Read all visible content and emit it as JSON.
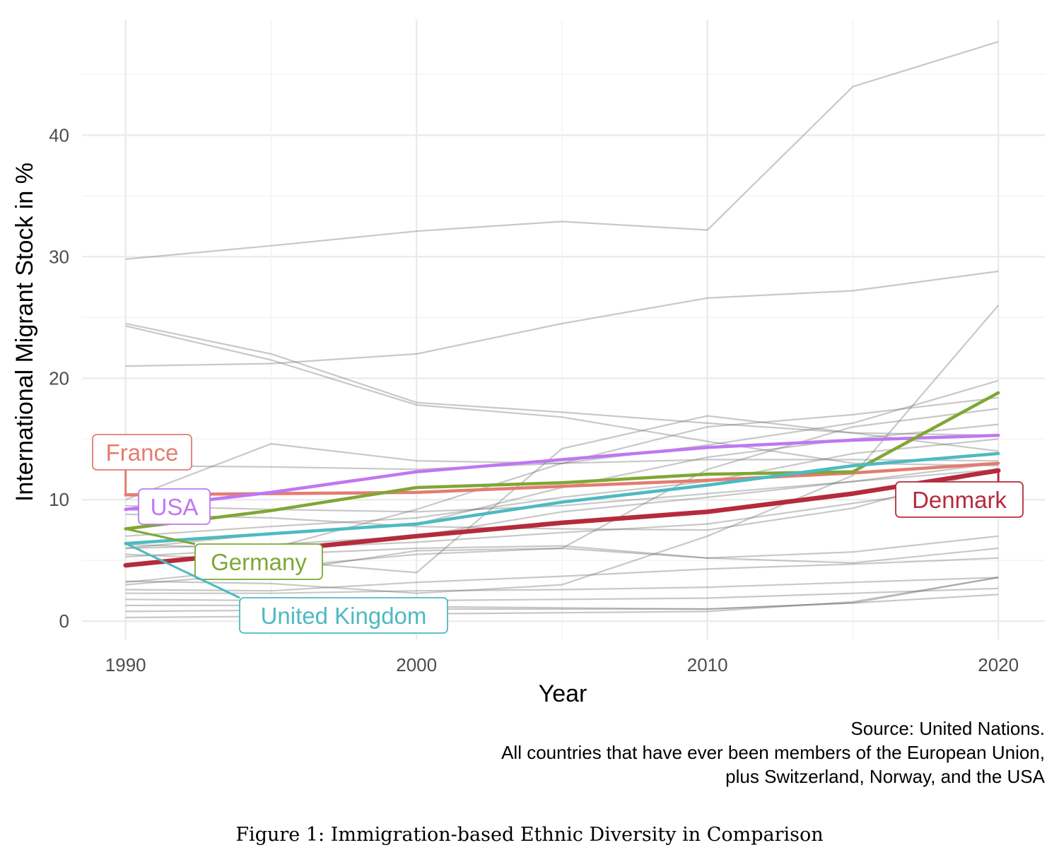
{
  "chart_data": {
    "type": "line",
    "xlabel": "Year",
    "ylabel": "International Migrant Stock in %",
    "xlim": [
      1988.5,
      2021.6
    ],
    "ylim": [
      -1.5,
      49.5
    ],
    "x_ticks": [
      1990,
      2000,
      2010,
      2020
    ],
    "y_ticks": [
      0,
      10,
      20,
      30,
      40
    ],
    "grid": true,
    "x": [
      1990,
      1995,
      2000,
      2005,
      2010,
      2015,
      2020
    ],
    "background_series": [
      [
        29.8,
        30.9,
        32.1,
        32.9,
        32.2,
        44.0,
        47.7
      ],
      [
        21.0,
        21.2,
        22.0,
        24.5,
        26.6,
        27.2,
        28.8
      ],
      [
        24.5,
        22.0,
        18.0,
        17.2,
        16.3,
        15.5,
        15.3
      ],
      [
        24.3,
        21.5,
        17.8,
        16.8,
        14.8,
        13.0,
        12.8
      ],
      [
        10.0,
        14.6,
        13.2,
        13.0,
        13.3,
        13.3,
        13.2
      ],
      [
        12.8,
        12.7,
        12.5,
        13.0,
        14.5,
        16.3,
        19.8
      ],
      [
        6.0,
        7.2,
        8.0,
        11.0,
        13.5,
        15.0,
        16.2
      ],
      [
        9.5,
        9.2,
        9.0,
        9.5,
        10.5,
        11.5,
        12.5
      ],
      [
        8.8,
        8.5,
        7.8,
        7.6,
        7.5,
        9.3,
        12.6
      ],
      [
        6.0,
        6.3,
        7.0,
        9.0,
        10.2,
        11.5,
        13.0
      ],
      [
        5.3,
        6.0,
        6.5,
        7.3,
        8.0,
        9.7,
        11.4
      ],
      [
        5.5,
        5.0,
        4.0,
        14.2,
        16.9,
        15.5,
        14.0
      ],
      [
        6.3,
        6.0,
        9.2,
        13.0,
        16.0,
        17.0,
        18.4
      ],
      [
        7.0,
        7.8,
        8.5,
        10.2,
        11.5,
        13.8,
        15.0
      ],
      [
        3.3,
        3.1,
        2.3,
        3.0,
        7.0,
        12.0,
        26.0
      ],
      [
        3.2,
        4.4,
        5.5,
        6.0,
        12.5,
        16.0,
        17.5
      ],
      [
        2.6,
        2.5,
        3.2,
        3.7,
        4.3,
        4.7,
        5.2
      ],
      [
        2.3,
        2.3,
        2.5,
        2.6,
        2.8,
        3.2,
        3.6
      ],
      [
        1.8,
        1.7,
        1.7,
        1.8,
        1.9,
        2.3,
        2.7
      ],
      [
        1.3,
        1.3,
        1.2,
        1.1,
        1.0,
        1.5,
        2.2
      ],
      [
        0.8,
        0.9,
        1.0,
        1.0,
        1.0,
        1.5,
        3.6
      ],
      [
        0.3,
        0.4,
        0.6,
        0.7,
        0.8,
        1.6,
        3.6
      ],
      [
        3.0,
        4.0,
        5.8,
        6.0,
        5.2,
        4.8,
        6.0
      ],
      [
        4.6,
        5.5,
        6.0,
        6.2,
        5.2,
        5.7,
        7.0
      ]
    ],
    "series": [
      {
        "name": "France",
        "color": "#e47c70",
        "values": [
          10.4,
          10.5,
          10.6,
          11.1,
          11.6,
          12.2,
          13.0
        ]
      },
      {
        "name": "USA",
        "color": "#c077f2",
        "values": [
          9.2,
          10.6,
          12.3,
          13.3,
          14.3,
          14.9,
          15.3
        ]
      },
      {
        "name": "Germany",
        "color": "#7fa734",
        "values": [
          7.6,
          9.1,
          11.0,
          11.4,
          12.1,
          12.3,
          18.8
        ]
      },
      {
        "name": "United Kingdom",
        "color": "#4dbac1",
        "values": [
          6.4,
          7.2,
          8.0,
          9.8,
          11.2,
          12.8,
          13.8
        ]
      },
      {
        "name": "Denmark",
        "color": "#b52b3c",
        "values": [
          4.6,
          5.8,
          7.0,
          8.1,
          9.0,
          10.5,
          12.4
        ]
      }
    ]
  },
  "caption": {
    "source_line1": "Source: United Nations.",
    "source_line2": "All countries that have ever been members of the European Union,",
    "source_line3": "plus Switzerland, Norway, and the USA"
  },
  "figure_caption": "Figure 1: Immigration-based Ethnic Diversity in Comparison"
}
